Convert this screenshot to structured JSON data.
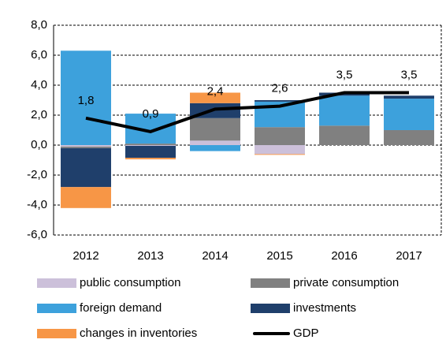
{
  "chart_data": {
    "type": "bar",
    "categories": [
      "2012",
      "2013",
      "2014",
      "2015",
      "2016",
      "2017"
    ],
    "series": [
      {
        "name": "public consumption",
        "color": "#ccc0da",
        "values": [
          -0.1,
          -0.05,
          0.3,
          -0.6,
          0,
          0
        ]
      },
      {
        "name": "private consumption",
        "color": "#808080",
        "values": [
          -0.1,
          0.1,
          1.5,
          1.2,
          1.3,
          1.0
        ]
      },
      {
        "name": "foreign demand",
        "color": "#3da1dc",
        "values": [
          6.3,
          2.0,
          -0.4,
          1.7,
          2.0,
          2.1
        ]
      },
      {
        "name": "investments",
        "color": "#1f3f6b",
        "values": [
          -2.6,
          -0.8,
          1.0,
          0.1,
          0.2,
          0.2
        ]
      },
      {
        "name": "changes in inventories",
        "color": "#f79646",
        "values": [
          -1.4,
          -0.1,
          0.7,
          -0.05,
          0,
          0
        ]
      },
      {
        "name": "GDP",
        "type": "line",
        "color": "#000000",
        "values": [
          1.8,
          0.9,
          2.4,
          2.6,
          3.5,
          3.5
        ],
        "value_labels": [
          "1,8",
          "0,9",
          "2,4",
          "2,6",
          "3,5",
          "3,5"
        ]
      }
    ],
    "ylim": [
      -6,
      8
    ],
    "yticks": [
      {
        "value": -6,
        "label": "-6,0"
      },
      {
        "value": -4,
        "label": "-4,0"
      },
      {
        "value": -2,
        "label": "-2,0"
      },
      {
        "value": 0,
        "label": "0,0"
      },
      {
        "value": 2,
        "label": "2,0"
      },
      {
        "value": 4,
        "label": "4,0"
      },
      {
        "value": 6,
        "label": "6,0"
      },
      {
        "value": 8,
        "label": "8,0"
      }
    ],
    "grid": true
  }
}
